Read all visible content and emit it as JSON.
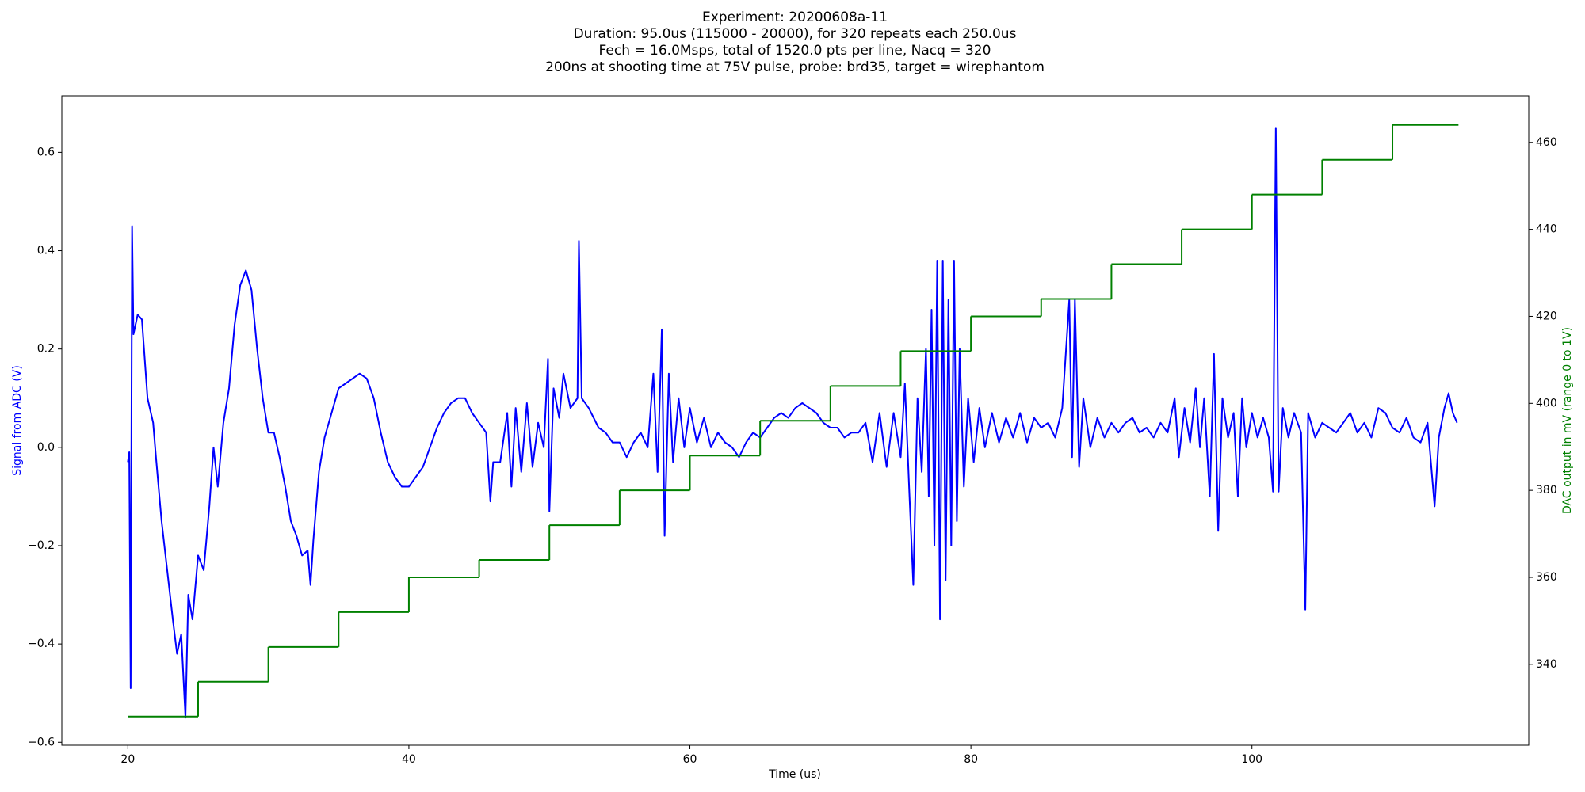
{
  "chart_data": {
    "type": "line",
    "title": [
      "Experiment: 20200608a-11",
      "Duration: 95.0us (115000 - 20000), for 320 repeats each 250.0us",
      "Fech = 16.0Msps, total of 1520.0 pts per line, Nacq = 320",
      "200ns at shooting time at 75V pulse, probe: brd35, target = wirephantom"
    ],
    "xlabel": "Time (us)",
    "ylabel": "Signal from ADC (V)",
    "ylabel_color": "#0000ff",
    "y2label": "DAC output in mV (range 0 to 1V)",
    "y2label_color": "#008000",
    "xlim": [
      15.3,
      119.7
    ],
    "ylim": [
      -0.606,
      0.715
    ],
    "y2lim": [
      321.4,
      470.7
    ],
    "xticks": [
      20,
      40,
      60,
      80,
      100
    ],
    "yticks": [
      {
        "value": -0.6,
        "label": "−0.6"
      },
      {
        "value": -0.4,
        "label": "−0.4"
      },
      {
        "value": -0.2,
        "label": "−0.2"
      },
      {
        "value": 0,
        "label": "0.0"
      },
      0.2,
      0.4,
      0.6
    ],
    "y2ticks": [
      340,
      360,
      380,
      400,
      420,
      440,
      460
    ],
    "grid": false,
    "series": [
      {
        "color": "#0000ff",
        "axis": "y",
        "x": [
          20.0,
          20.1,
          20.2,
          20.3,
          20.4,
          20.7,
          21.0,
          21.4,
          21.8,
          22.0,
          22.4,
          22.8,
          23.2,
          23.5,
          23.8,
          24.1,
          24.3,
          24.6,
          25.0,
          25.4,
          25.8,
          26.1,
          26.4,
          26.8,
          27.2,
          27.6,
          28.0,
          28.4,
          28.8,
          29.2,
          29.6,
          30.0,
          30.4,
          30.8,
          31.2,
          31.6,
          32.0,
          32.4,
          32.8,
          33.0,
          33.2,
          33.6,
          34.0,
          34.5,
          35.0,
          35.5,
          36.0,
          36.5,
          37.0,
          37.5,
          38.0,
          38.5,
          39.0,
          39.5,
          40.0,
          40.5,
          41.0,
          41.5,
          42.0,
          42.5,
          43.0,
          43.5,
          44.0,
          44.5,
          45.0,
          45.5,
          45.8,
          46.0,
          46.5,
          47.0,
          47.3,
          47.6,
          48.0,
          48.4,
          48.8,
          49.2,
          49.6,
          49.9,
          50.0,
          50.3,
          50.7,
          51.0,
          51.5,
          52.0,
          52.1,
          52.3,
          52.8,
          53.5,
          54.0,
          54.5,
          55.0,
          55.5,
          56.0,
          56.5,
          57.0,
          57.4,
          57.7,
          58.0,
          58.2,
          58.5,
          58.8,
          59.2,
          59.6,
          60.0,
          60.5,
          61.0,
          61.5,
          62.0,
          62.5,
          63.0,
          63.5,
          64.0,
          64.5,
          65.0,
          65.5,
          66.0,
          66.5,
          67.0,
          67.5,
          68.0,
          68.5,
          69.0,
          69.5,
          70.0,
          70.5,
          71.0,
          71.5,
          72.0,
          72.5,
          73.0,
          73.5,
          74.0,
          74.5,
          75.0,
          75.3,
          75.6,
          75.9,
          76.2,
          76.5,
          76.8,
          77.0,
          77.2,
          77.4,
          77.6,
          77.8,
          78.0,
          78.2,
          78.4,
          78.6,
          78.8,
          79.0,
          79.2,
          79.5,
          79.8,
          80.2,
          80.6,
          81.0,
          81.5,
          82.0,
          82.5,
          83.0,
          83.5,
          84.0,
          84.5,
          85.0,
          85.5,
          86.0,
          86.5,
          87.0,
          87.2,
          87.4,
          87.7,
          88.0,
          88.5,
          89.0,
          89.5,
          90.0,
          90.5,
          91.0,
          91.5,
          92.0,
          92.5,
          93.0,
          93.5,
          94.0,
          94.5,
          94.8,
          95.2,
          95.6,
          96.0,
          96.3,
          96.6,
          97.0,
          97.3,
          97.6,
          97.9,
          98.3,
          98.7,
          99.0,
          99.3,
          99.6,
          100.0,
          100.4,
          100.8,
          101.2,
          101.5,
          101.7,
          101.9,
          102.2,
          102.6,
          103.0,
          103.5,
          103.8,
          104.0,
          104.5,
          105.0,
          105.5,
          106.0,
          106.5,
          107.0,
          107.5,
          108.0,
          108.5,
          109.0,
          109.5,
          110.0,
          110.5,
          111.0,
          111.5,
          112.0,
          112.5,
          113.0,
          113.3,
          113.7,
          114.0,
          114.3,
          114.6
        ],
        "values": [
          -0.03,
          -0.01,
          -0.49,
          0.45,
          0.23,
          0.27,
          0.26,
          0.1,
          0.05,
          -0.02,
          -0.15,
          -0.25,
          -0.35,
          -0.42,
          -0.38,
          -0.55,
          -0.3,
          -0.35,
          -0.22,
          -0.25,
          -0.12,
          0.0,
          -0.08,
          0.05,
          0.12,
          0.25,
          0.33,
          0.36,
          0.32,
          0.2,
          0.1,
          0.03,
          0.03,
          -0.02,
          -0.08,
          -0.15,
          -0.18,
          -0.22,
          -0.21,
          -0.28,
          -0.19,
          -0.05,
          0.02,
          0.07,
          0.12,
          0.13,
          0.14,
          0.15,
          0.14,
          0.1,
          0.03,
          -0.03,
          -0.06,
          -0.08,
          -0.08,
          -0.06,
          -0.04,
          0.0,
          0.04,
          0.07,
          0.09,
          0.1,
          0.1,
          0.07,
          0.05,
          0.03,
          -0.11,
          -0.03,
          -0.03,
          0.07,
          -0.08,
          0.08,
          -0.05,
          0.09,
          -0.04,
          0.05,
          0.0,
          0.18,
          -0.13,
          0.12,
          0.06,
          0.15,
          0.08,
          0.1,
          0.42,
          0.1,
          0.08,
          0.04,
          0.03,
          0.01,
          0.01,
          -0.02,
          0.01,
          0.03,
          0.0,
          0.15,
          -0.05,
          0.24,
          -0.18,
          0.15,
          -0.03,
          0.1,
          0.0,
          0.08,
          0.01,
          0.06,
          0.0,
          0.03,
          0.01,
          0.0,
          -0.02,
          0.01,
          0.03,
          0.02,
          0.04,
          0.06,
          0.07,
          0.06,
          0.08,
          0.09,
          0.08,
          0.07,
          0.05,
          0.04,
          0.04,
          0.02,
          0.03,
          0.03,
          0.05,
          -0.03,
          0.07,
          -0.04,
          0.07,
          -0.02,
          0.13,
          -0.08,
          -0.28,
          0.1,
          -0.05,
          0.2,
          -0.1,
          0.28,
          -0.2,
          0.38,
          -0.35,
          0.38,
          -0.27,
          0.3,
          -0.2,
          0.38,
          -0.15,
          0.2,
          -0.08,
          0.1,
          -0.03,
          0.08,
          0.0,
          0.07,
          0.01,
          0.06,
          0.02,
          0.07,
          0.01,
          0.06,
          0.04,
          0.05,
          0.02,
          0.08,
          0.3,
          -0.02,
          0.3,
          -0.04,
          0.1,
          0.0,
          0.06,
          0.02,
          0.05,
          0.03,
          0.05,
          0.06,
          0.03,
          0.04,
          0.02,
          0.05,
          0.03,
          0.1,
          -0.02,
          0.08,
          0.01,
          0.12,
          0.0,
          0.1,
          -0.1,
          0.19,
          -0.17,
          0.1,
          0.02,
          0.07,
          -0.1,
          0.1,
          0.0,
          0.07,
          0.02,
          0.06,
          0.02,
          -0.09,
          0.65,
          -0.09,
          0.08,
          0.02,
          0.07,
          0.03,
          -0.33,
          0.07,
          0.02,
          0.05,
          0.04,
          0.03,
          0.05,
          0.07,
          0.03,
          0.05,
          0.02,
          0.08,
          0.07,
          0.04,
          0.03,
          0.06,
          0.02,
          0.01,
          0.05,
          -0.12,
          0.02,
          0.08,
          0.11,
          0.07,
          0.05
        ]
      },
      {
        "color": "#008000",
        "axis": "y2",
        "drawstyle": "steps-post",
        "x": [
          20,
          25,
          30,
          35,
          40,
          45,
          50,
          55,
          60,
          65,
          70,
          75,
          80,
          85,
          90,
          95,
          100,
          105,
          110,
          114.7
        ],
        "values": [
          328,
          336,
          344,
          352,
          360,
          364,
          372,
          380,
          388,
          396,
          404,
          412,
          420,
          424,
          432,
          440,
          448,
          456,
          464,
          464
        ]
      }
    ]
  }
}
